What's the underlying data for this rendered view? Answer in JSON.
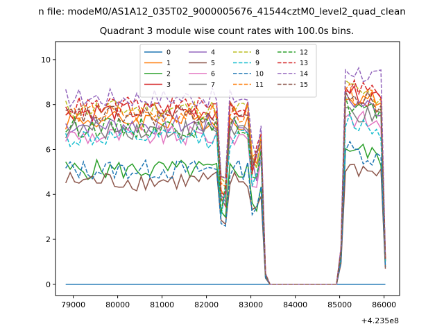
{
  "figure": {
    "suptitle": "n file: modeM0/AS1A12_035T02_9000005676_41544cztM0_level2_quad_clean",
    "offset_text": "+4.235e8"
  },
  "chart_data": {
    "type": "line",
    "title": "Quadrant 3 module wise count rates with 100.0s bins.",
    "xlabel": "",
    "ylabel": "",
    "x_offset": 423500000,
    "xlim": [
      78600,
      86350
    ],
    "ylim": [
      -0.5,
      10.8
    ],
    "x_ticks": [
      79000,
      80000,
      81000,
      82000,
      83000,
      84000,
      85000,
      86000
    ],
    "x_tick_labels": [
      "79000",
      "80000",
      "81000",
      "82000",
      "83000",
      "84000",
      "85000",
      "86000"
    ],
    "y_ticks": [
      0,
      2,
      4,
      6,
      8,
      10
    ],
    "y_tick_labels": [
      "0",
      "2",
      "4",
      "6",
      "8",
      "10"
    ],
    "grid": false,
    "legend_position": "upper-center",
    "segments": {
      "x_start": 78830,
      "x_step": 100,
      "note_segments": "values listed per 100 s bin from x_start"
    },
    "series": [
      {
        "name": "0",
        "color": "#1f77b4",
        "dash": "solid",
        "level": 0.0,
        "high": 0.0
      },
      {
        "name": "1",
        "color": "#ff7f0e",
        "dash": "solid",
        "level": 7.3,
        "high": 8.6
      },
      {
        "name": "2",
        "color": "#2ca02c",
        "dash": "solid",
        "level": 5.1,
        "high": 6.2
      },
      {
        "name": "3",
        "color": "#d62728",
        "dash": "solid",
        "level": 7.7,
        "high": 8.7
      },
      {
        "name": "4",
        "color": "#9467bd",
        "dash": "solid",
        "level": 7.1,
        "high": 8.3
      },
      {
        "name": "5",
        "color": "#8c564b",
        "dash": "solid",
        "level": 4.6,
        "high": 5.4
      },
      {
        "name": "6",
        "color": "#e377c2",
        "dash": "solid",
        "level": 6.6,
        "high": 7.6
      },
      {
        "name": "7",
        "color": "#7f7f7f",
        "dash": "solid",
        "level": 6.9,
        "high": 7.8
      },
      {
        "name": "8",
        "color": "#bcbd22",
        "dash": "dashed",
        "level": 7.8,
        "high": 8.8
      },
      {
        "name": "9",
        "color": "#17becf",
        "dash": "dashed",
        "level": 6.5,
        "high": 7.4
      },
      {
        "name": "10",
        "color": "#1f77b4",
        "dash": "dashed",
        "level": 5.1,
        "high": 6.1
      },
      {
        "name": "11",
        "color": "#ff7f0e",
        "dash": "dashed",
        "level": 7.6,
        "high": 8.6
      },
      {
        "name": "12",
        "color": "#2ca02c",
        "dash": "dashed",
        "level": 7.0,
        "high": 8.1
      },
      {
        "name": "13",
        "color": "#d62728",
        "dash": "dashed",
        "level": 7.9,
        "high": 9.0
      },
      {
        "name": "14",
        "color": "#9467bd",
        "dash": "dashed",
        "level": 8.3,
        "high": 9.7
      },
      {
        "name": "15",
        "color": "#8c564b",
        "dash": "dashed",
        "level": 7.5,
        "high": 8.5
      }
    ]
  }
}
